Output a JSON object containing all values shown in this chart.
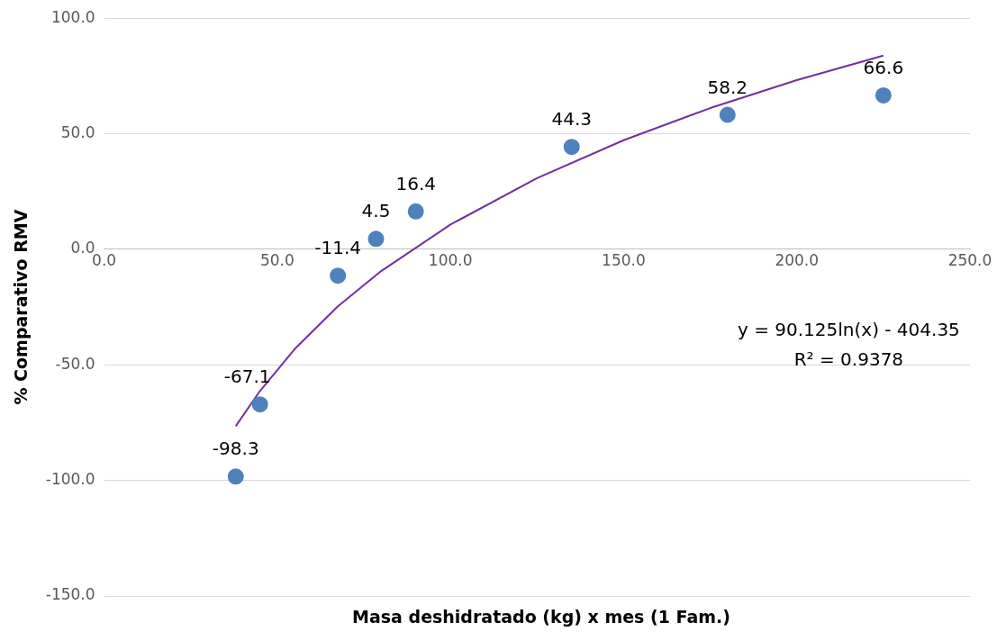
{
  "chart_data": {
    "type": "scatter",
    "xlabel": "Masa deshidratado  (kg) x mes (1 Fam.)",
    "ylabel": "% Comparativo RMV",
    "xlim": [
      0,
      250
    ],
    "xticks": [
      {
        "value": 0,
        "label": "0.0"
      },
      {
        "value": 50,
        "label": "50.0"
      },
      {
        "value": 100,
        "label": "100.0"
      },
      {
        "value": 150,
        "label": "150.0"
      },
      {
        "value": 200,
        "label": "200.0"
      },
      {
        "value": 250,
        "label": "250.0"
      }
    ],
    "ylim": [
      -150,
      100
    ],
    "yticks": [
      {
        "value": -150,
        "label": "-150.0"
      },
      {
        "value": -100,
        "label": "-100.0"
      },
      {
        "value": -50,
        "label": "-50.0"
      },
      {
        "value": 0,
        "label": "0.0"
      },
      {
        "value": 50,
        "label": "50.0"
      },
      {
        "value": 100,
        "label": "100.0"
      }
    ],
    "grid": "y",
    "legend": false,
    "marker": "circle",
    "series": [
      {
        "color": "#4f81bd",
        "x": [
          38,
          45,
          67.5,
          78.5,
          90,
          135,
          180,
          225
        ],
        "values": [
          -98.3,
          -67.1,
          -11.4,
          4.5,
          16.4,
          44.3,
          58.2,
          66.6
        ],
        "value_labels": [
          "-98.3",
          "-67.1",
          "-11.4",
          "4.5",
          "16.4",
          "44.3",
          "58.2",
          "66.6"
        ]
      },
      {
        "type": "line",
        "color": "#7030a0",
        "marker": "none",
        "x": [
          38,
          45,
          55,
          67.5,
          80,
          100,
          125,
          150,
          175,
          200,
          225
        ],
        "values": [
          -76.5,
          -61.3,
          -43.2,
          -24.7,
          -9.4,
          10.7,
          30.8,
          47.2,
          61.1,
          73.2,
          83.8
        ]
      }
    ],
    "annotations": [
      "y = 90.125ln(x) - 404.35",
      "R² = 0.9378"
    ]
  }
}
